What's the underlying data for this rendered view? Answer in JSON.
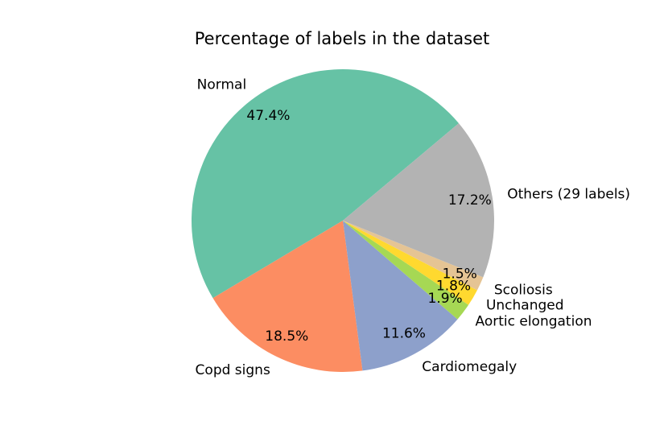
{
  "chart_data": {
    "type": "pie",
    "title": "Percentage of labels in the dataset",
    "slices": [
      {
        "label": "Normal",
        "value": 47.4,
        "pct_label": "47.4%",
        "color": "#66c2a5"
      },
      {
        "label": "Copd signs",
        "value": 18.5,
        "pct_label": "18.5%",
        "color": "#fc8d62"
      },
      {
        "label": "Cardiomegaly",
        "value": 11.6,
        "pct_label": "11.6%",
        "color": "#8da0cb"
      },
      {
        "label": "Aortic elongation",
        "value": 1.9,
        "pct_label": "1.9%",
        "color": "#a6d854"
      },
      {
        "label": "Unchanged",
        "value": 1.8,
        "pct_label": "1.8%",
        "color": "#ffd92f"
      },
      {
        "label": "Scoliosis",
        "value": 1.5,
        "pct_label": "1.5%",
        "color": "#e5c494"
      },
      {
        "label": "Others (29 labels)",
        "value": 17.2,
        "pct_label": "17.2%",
        "color": "#b3b3b3"
      }
    ],
    "start_angle_deg": 40,
    "direction": "counterclockwise"
  }
}
